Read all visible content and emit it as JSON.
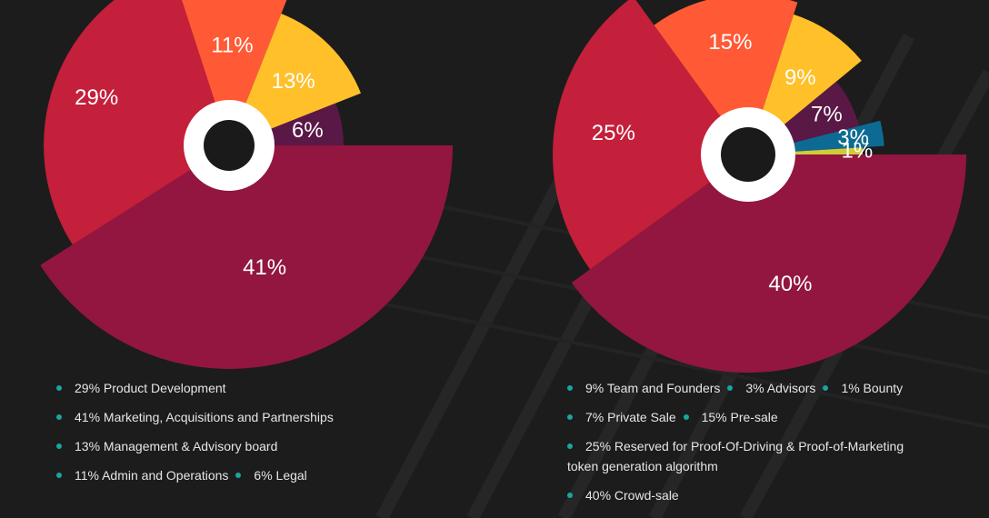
{
  "theme": {
    "background": "#1c1c1c",
    "bullet_color": "#1aa5a0",
    "hole_color": "#ffffff",
    "hole_center": "#1a1a1a"
  },
  "chart_data": [
    {
      "type": "pie",
      "variant": "radial-nightingale",
      "slices": [
        {
          "label": "41%",
          "value": 41,
          "color": "#92163f"
        },
        {
          "label": "29%",
          "value": 29,
          "color": "#c41f3b"
        },
        {
          "label": "11%",
          "value": 11,
          "color": "#ff5a35"
        },
        {
          "label": "13%",
          "value": 13,
          "color": "#ffc02a"
        },
        {
          "label": "6%",
          "value": 6,
          "color": "#5a1847"
        }
      ],
      "legend": [
        [
          "29% Product Development"
        ],
        [
          "41% Marketing, Acquisitions and Partnerships"
        ],
        [
          "13% Management & Advisory board"
        ],
        [
          "11% Admin and Operations",
          "6% Legal"
        ]
      ]
    },
    {
      "type": "pie",
      "variant": "radial-nightingale",
      "slices": [
        {
          "label": "40%",
          "value": 40,
          "color": "#92163f"
        },
        {
          "label": "25%",
          "value": 25,
          "color": "#c41f3b"
        },
        {
          "label": "15%",
          "value": 15,
          "color": "#ff5a35"
        },
        {
          "label": "9%",
          "value": 9,
          "color": "#ffc02a"
        },
        {
          "label": "7%",
          "value": 7,
          "color": "#5a1847"
        },
        {
          "label": "3%",
          "value": 3,
          "color": "#0d6a93"
        },
        {
          "label": "1%",
          "value": 1,
          "color": "#d0cb38"
        }
      ],
      "legend": [
        [
          "9% Team and Founders",
          "3% Advisors",
          "1% Bounty"
        ],
        [
          "7% Private Sale",
          "15% Pre-sale"
        ],
        [
          "25% Reserved for Proof-Of-Driving & Proof-of-Marketing token generation algorithm"
        ],
        [
          "40% Crowd-sale"
        ]
      ]
    }
  ]
}
